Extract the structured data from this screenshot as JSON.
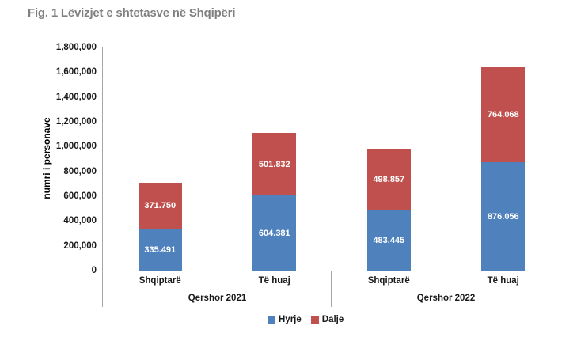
{
  "colors": {
    "title": "#808080",
    "axis_line": "#a6a6a6",
    "bar_label_text": "#ffffff",
    "hyrje": "#4F81BD",
    "dalje": "#C0504D"
  },
  "chart_data": {
    "type": "bar",
    "stacked": true,
    "title": "Fig. 1 Lëvizjet e shtetasve në Shqipëri",
    "xlabel": "",
    "ylabel": "numri i personave",
    "ylim": [
      0,
      1800000
    ],
    "ytick_step": 200000,
    "ytick_labels": [
      "0",
      "200,000",
      "400,000",
      "600,000",
      "800,000",
      "1,000,000",
      "1,200,000",
      "1,400,000",
      "1,600,000",
      "1,800,000"
    ],
    "grid": false,
    "legend_position": "bottom",
    "groups": [
      {
        "label": "Qershor 2021",
        "categories": [
          "Shqiptarë",
          "Të huaj"
        ]
      },
      {
        "label": "Qershor 2022",
        "categories": [
          "Shqiptarë",
          "Të huaj"
        ]
      }
    ],
    "series": [
      {
        "name": "Hyrje",
        "color": "#4F81BD",
        "values": [
          335491,
          604381,
          483445,
          876056
        ],
        "value_labels": [
          "335.491",
          "604.381",
          "483.445",
          "876.056"
        ]
      },
      {
        "name": "Dalje",
        "color": "#C0504D",
        "values": [
          371750,
          501832,
          498857,
          764068
        ],
        "value_labels": [
          "371.750",
          "501.832",
          "498.857",
          "764.068"
        ]
      }
    ]
  }
}
